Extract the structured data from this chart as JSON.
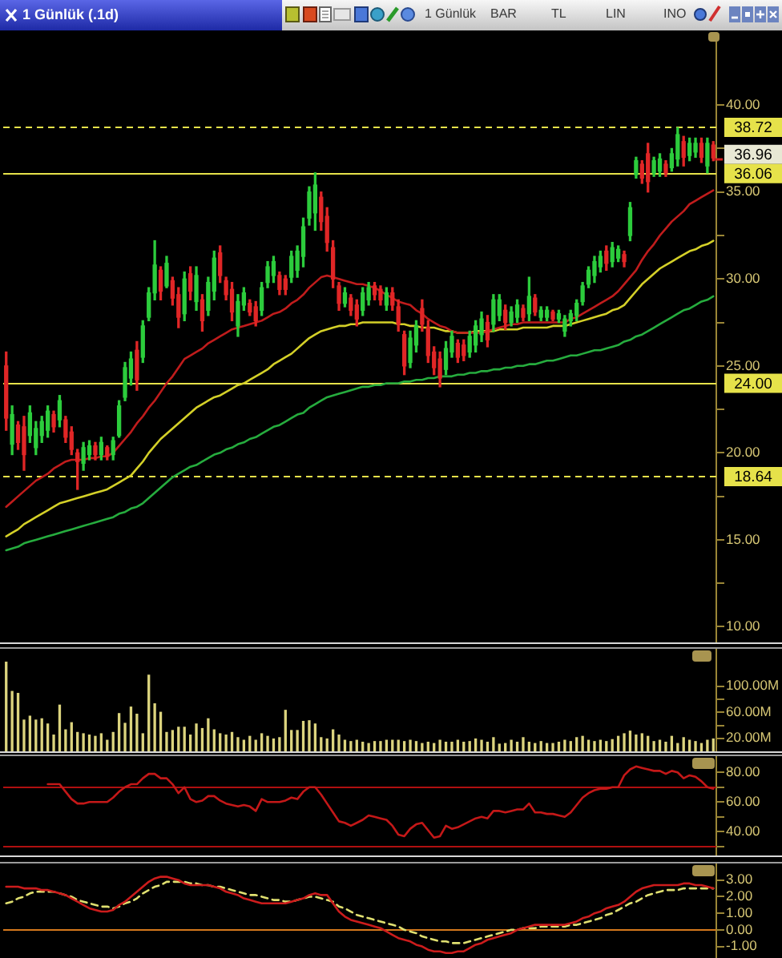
{
  "chart_data": [
    {
      "type": "candlestick",
      "title": "1 Günlük (.1d)",
      "categories": [
        null,
        null,
        null,
        null,
        null,
        null,
        null,
        null,
        null,
        null,
        null,
        null,
        null,
        null,
        null,
        null,
        null,
        null,
        null,
        null,
        null,
        null,
        null,
        null,
        null,
        null,
        null,
        null,
        null,
        null,
        null,
        null,
        null,
        null,
        null,
        null,
        null,
        null,
        null,
        null,
        null,
        null,
        null,
        null,
        null,
        null,
        null,
        null,
        null,
        null,
        null,
        null,
        null,
        null,
        null,
        null,
        null,
        null,
        null,
        null,
        null,
        null,
        null,
        null,
        null,
        null,
        null,
        null,
        null,
        null,
        null,
        null,
        null,
        null,
        null,
        null,
        null,
        null,
        null,
        null,
        null,
        null,
        null,
        null,
        null,
        null,
        null,
        null,
        null,
        null,
        null,
        null,
        null,
        null,
        null,
        null,
        null,
        null,
        null,
        null,
        null,
        null,
        null,
        null,
        null,
        null,
        null,
        null,
        null,
        null,
        null,
        null,
        null,
        null,
        null,
        null,
        null,
        null,
        null,
        null
      ],
      "ohlc": [
        [
          25.0,
          25.8,
          21.3,
          22.0
        ],
        [
          20.5,
          22.7,
          19.9,
          22.2
        ],
        [
          21.6,
          21.8,
          20.2,
          20.6
        ],
        [
          21.5,
          22.1,
          19.0,
          19.9
        ],
        [
          21.0,
          22.7,
          20.6,
          22.3
        ],
        [
          20.3,
          21.8,
          19.9,
          21.4
        ],
        [
          21.0,
          22.1,
          20.6,
          21.8
        ],
        [
          21.3,
          22.7,
          20.9,
          22.4
        ],
        [
          22.2,
          22.4,
          21.2,
          21.5
        ],
        [
          21.9,
          23.3,
          21.5,
          23.0
        ],
        [
          21.9,
          22.1,
          20.6,
          20.9
        ],
        [
          21.2,
          21.5,
          19.9,
          20.2
        ],
        [
          20.0,
          20.2,
          17.9,
          19.5
        ],
        [
          19.4,
          20.6,
          19.0,
          20.3
        ],
        [
          19.9,
          20.7,
          19.6,
          20.4
        ],
        [
          20.4,
          20.6,
          19.6,
          19.9
        ],
        [
          19.9,
          20.9,
          19.6,
          20.6
        ],
        [
          20.3,
          20.4,
          19.6,
          19.8
        ],
        [
          19.9,
          20.9,
          19.6,
          20.7
        ],
        [
          21.0,
          23.0,
          20.9,
          22.7
        ],
        [
          23.2,
          25.2,
          23.0,
          24.9
        ],
        [
          24.3,
          25.8,
          23.9,
          25.4
        ],
        [
          25.9,
          26.4,
          23.6,
          24.2
        ],
        [
          25.5,
          27.6,
          25.2,
          27.3
        ],
        [
          27.8,
          29.5,
          27.6,
          29.2
        ],
        [
          29.2,
          32.2,
          28.8,
          30.8
        ],
        [
          30.5,
          30.7,
          28.8,
          29.3
        ],
        [
          29.6,
          31.3,
          29.5,
          30.9
        ],
        [
          29.9,
          30.1,
          28.5,
          28.9
        ],
        [
          29.1,
          29.5,
          27.2,
          27.8
        ],
        [
          28.0,
          30.4,
          27.6,
          30.0
        ],
        [
          30.3,
          30.7,
          28.8,
          29.3
        ],
        [
          28.7,
          30.7,
          28.2,
          30.2
        ],
        [
          28.8,
          29.1,
          27.0,
          27.6
        ],
        [
          28.2,
          30.1,
          27.9,
          29.8
        ],
        [
          29.3,
          31.6,
          28.8,
          31.2
        ],
        [
          31.5,
          31.9,
          29.8,
          30.2
        ],
        [
          29.9,
          30.1,
          28.8,
          29.1
        ],
        [
          29.4,
          29.8,
          27.6,
          28.1
        ],
        [
          27.3,
          29.1,
          26.7,
          28.7
        ],
        [
          28.5,
          29.5,
          28.2,
          29.2
        ],
        [
          28.6,
          28.8,
          27.9,
          28.1
        ],
        [
          28.4,
          28.7,
          27.3,
          27.6
        ],
        [
          28.2,
          29.8,
          27.9,
          29.5
        ],
        [
          29.8,
          31.0,
          29.5,
          30.7
        ],
        [
          30.2,
          31.3,
          29.8,
          31.0
        ],
        [
          30.2,
          30.4,
          29.1,
          29.4
        ],
        [
          30.0,
          30.2,
          29.1,
          29.4
        ],
        [
          30.1,
          31.6,
          29.8,
          31.3
        ],
        [
          30.5,
          31.9,
          30.1,
          31.6
        ],
        [
          31.3,
          33.5,
          30.7,
          33.0
        ],
        [
          33.5,
          35.3,
          33.1,
          35.0
        ],
        [
          33.8,
          36.1,
          32.8,
          35.4
        ],
        [
          34.7,
          35.0,
          32.8,
          33.3
        ],
        [
          33.6,
          34.1,
          31.6,
          32.1
        ],
        [
          31.8,
          32.2,
          29.5,
          30.0
        ],
        [
          29.6,
          29.8,
          28.2,
          28.6
        ],
        [
          28.6,
          29.5,
          28.4,
          29.2
        ],
        [
          28.9,
          29.1,
          27.9,
          28.2
        ],
        [
          28.5,
          28.8,
          27.3,
          27.7
        ],
        [
          28.2,
          29.5,
          27.9,
          29.2
        ],
        [
          28.8,
          29.8,
          28.5,
          29.5
        ],
        [
          29.6,
          29.8,
          28.8,
          29.1
        ],
        [
          29.4,
          29.6,
          28.5,
          28.8
        ],
        [
          28.5,
          29.5,
          28.2,
          29.2
        ],
        [
          29.2,
          29.5,
          28.2,
          28.5
        ],
        [
          28.4,
          28.8,
          27.0,
          27.4
        ],
        [
          26.8,
          27.0,
          24.5,
          25.0
        ],
        [
          25.2,
          27.0,
          24.9,
          26.6
        ],
        [
          26.2,
          27.6,
          25.8,
          27.3
        ],
        [
          28.3,
          28.8,
          27.0,
          27.4
        ],
        [
          27.2,
          27.6,
          25.2,
          25.6
        ],
        [
          25.8,
          26.1,
          24.5,
          24.9
        ],
        [
          25.4,
          25.8,
          23.8,
          24.3
        ],
        [
          24.8,
          26.4,
          24.5,
          26.0
        ],
        [
          25.8,
          27.0,
          25.5,
          26.7
        ],
        [
          26.3,
          26.5,
          25.2,
          25.5
        ],
        [
          26.2,
          26.5,
          25.3,
          25.6
        ],
        [
          25.8,
          27.0,
          25.5,
          26.7
        ],
        [
          26.2,
          27.6,
          25.8,
          27.3
        ],
        [
          26.8,
          28.1,
          26.4,
          27.7
        ],
        [
          27.5,
          27.9,
          26.1,
          26.5
        ],
        [
          27.4,
          29.1,
          27.0,
          28.8
        ],
        [
          27.9,
          29.1,
          27.6,
          28.8
        ],
        [
          28.2,
          28.5,
          27.1,
          27.5
        ],
        [
          27.5,
          28.4,
          27.3,
          28.1
        ],
        [
          27.8,
          28.8,
          27.5,
          28.5
        ],
        [
          28.3,
          28.5,
          27.6,
          27.8
        ],
        [
          28.0,
          30.1,
          27.6,
          29.0
        ],
        [
          28.9,
          29.1,
          27.9,
          28.1
        ],
        [
          27.8,
          28.4,
          27.6,
          28.2
        ],
        [
          27.8,
          28.4,
          27.6,
          28.2
        ],
        [
          28.1,
          28.2,
          27.6,
          27.7
        ],
        [
          27.7,
          28.2,
          27.5,
          28.0
        ],
        [
          27.0,
          27.9,
          26.7,
          27.7
        ],
        [
          27.6,
          28.2,
          27.3,
          28.0
        ],
        [
          27.9,
          28.8,
          27.6,
          28.6
        ],
        [
          28.7,
          29.8,
          28.5,
          29.6
        ],
        [
          29.7,
          30.7,
          29.5,
          30.5
        ],
        [
          30.2,
          31.3,
          29.8,
          31.0
        ],
        [
          30.7,
          31.6,
          30.4,
          31.3
        ],
        [
          31.6,
          31.9,
          30.5,
          30.9
        ],
        [
          31.0,
          32.1,
          30.7,
          31.8
        ],
        [
          31.2,
          31.9,
          31.0,
          31.7
        ],
        [
          31.4,
          31.6,
          30.7,
          31.0
        ],
        [
          32.5,
          34.4,
          32.2,
          34.1
        ],
        [
          36.0,
          37.0,
          35.8,
          36.8
        ],
        [
          36.6,
          36.8,
          35.5,
          35.8
        ],
        [
          37.2,
          37.8,
          35.0,
          35.6
        ],
        [
          36.1,
          37.0,
          35.9,
          36.8
        ],
        [
          36.2,
          37.2,
          35.9,
          36.9
        ],
        [
          36.6,
          36.8,
          35.9,
          36.1
        ],
        [
          36.4,
          37.5,
          36.2,
          37.2
        ],
        [
          36.9,
          38.7,
          36.5,
          38.3
        ],
        [
          37.9,
          38.2,
          36.5,
          37.0
        ],
        [
          37.1,
          38.1,
          36.8,
          37.8
        ],
        [
          37.3,
          38.1,
          37.0,
          37.8
        ],
        [
          37.8,
          38.1,
          36.7,
          37.0
        ],
        [
          36.5,
          38.1,
          36.1,
          37.8
        ],
        [
          37.7,
          37.9,
          36.8,
          36.96
        ]
      ],
      "series": [
        {
          "type": "line",
          "color": "#c01c1c",
          "values": [
            16.9,
            17.2,
            17.5,
            17.8,
            18.1,
            18.4,
            18.6,
            18.8,
            19.1,
            19.3,
            19.5,
            19.6,
            19.6,
            19.6,
            19.7,
            19.7,
            19.8,
            19.8,
            20.0,
            20.4,
            20.8,
            21.2,
            21.7,
            22.1,
            22.6,
            23.0,
            23.5,
            24.0,
            24.4,
            24.9,
            25.4,
            25.6,
            25.8,
            26.0,
            26.3,
            26.5,
            26.7,
            26.9,
            27.1,
            27.2,
            27.3,
            27.4,
            27.5,
            27.6,
            27.8,
            28.0,
            28.1,
            28.3,
            28.6,
            28.8,
            29.1,
            29.5,
            29.8,
            30.1,
            30.2,
            30.1,
            30.0,
            29.9,
            29.8,
            29.7,
            29.7,
            29.6,
            29.5,
            29.3,
            29.1,
            28.9,
            28.7,
            28.6,
            28.5,
            28.2,
            28.0,
            27.7,
            27.5,
            27.3,
            27.2,
            27.0,
            26.9,
            26.9,
            26.9,
            26.9,
            26.9,
            27.0,
            27.1,
            27.2,
            27.3,
            27.4,
            27.4,
            27.5,
            27.5,
            27.5,
            27.5,
            27.5,
            27.5,
            27.5,
            27.5,
            27.7,
            27.8,
            28.0,
            28.2,
            28.4,
            28.6,
            28.8,
            29.0,
            29.3,
            29.7,
            30.1,
            30.5,
            31.1,
            31.6,
            32.0,
            32.5,
            32.9,
            33.3,
            33.6,
            33.9,
            34.3,
            34.5,
            34.7,
            34.9,
            35.1
          ]
        },
        {
          "type": "line",
          "color": "#d4d028",
          "values": [
            15.2,
            15.4,
            15.6,
            15.9,
            16.1,
            16.3,
            16.5,
            16.7,
            16.9,
            17.1,
            17.2,
            17.3,
            17.4,
            17.5,
            17.6,
            17.7,
            17.8,
            17.9,
            18.1,
            18.3,
            18.5,
            18.7,
            19.1,
            19.5,
            20.0,
            20.4,
            20.8,
            21.1,
            21.4,
            21.7,
            22.0,
            22.3,
            22.6,
            22.8,
            23.0,
            23.2,
            23.3,
            23.5,
            23.7,
            23.9,
            24.0,
            24.2,
            24.4,
            24.6,
            24.8,
            25.1,
            25.3,
            25.5,
            25.7,
            26.0,
            26.3,
            26.6,
            26.8,
            27.0,
            27.1,
            27.2,
            27.3,
            27.3,
            27.4,
            27.4,
            27.5,
            27.5,
            27.5,
            27.5,
            27.5,
            27.5,
            27.4,
            27.4,
            27.3,
            27.3,
            27.2,
            27.2,
            27.2,
            27.1,
            27.0,
            27.0,
            26.9,
            26.9,
            26.9,
            27.0,
            27.0,
            27.0,
            27.0,
            27.1,
            27.1,
            27.1,
            27.1,
            27.2,
            27.2,
            27.2,
            27.2,
            27.2,
            27.3,
            27.3,
            27.3,
            27.4,
            27.5,
            27.6,
            27.7,
            27.8,
            27.9,
            28.0,
            28.2,
            28.3,
            28.5,
            28.9,
            29.3,
            29.7,
            30.0,
            30.3,
            30.6,
            30.8,
            31.0,
            31.2,
            31.4,
            31.6,
            31.7,
            31.9,
            32.0,
            32.2
          ]
        },
        {
          "type": "line",
          "color": "#26ac3e",
          "values": [
            14.4,
            14.5,
            14.6,
            14.8,
            14.9,
            15.0,
            15.1,
            15.2,
            15.3,
            15.4,
            15.5,
            15.6,
            15.7,
            15.8,
            15.9,
            16.0,
            16.1,
            16.2,
            16.3,
            16.5,
            16.6,
            16.8,
            16.9,
            17.1,
            17.4,
            17.7,
            18.0,
            18.3,
            18.6,
            18.8,
            19.0,
            19.2,
            19.3,
            19.5,
            19.7,
            19.9,
            20.0,
            20.2,
            20.3,
            20.5,
            20.6,
            20.8,
            20.9,
            21.1,
            21.3,
            21.5,
            21.6,
            21.8,
            22.0,
            22.2,
            22.3,
            22.6,
            22.8,
            23.0,
            23.2,
            23.3,
            23.4,
            23.5,
            23.6,
            23.7,
            23.8,
            23.8,
            23.9,
            23.9,
            24.0,
            24.0,
            24.0,
            24.1,
            24.1,
            24.2,
            24.2,
            24.3,
            24.3,
            24.4,
            24.4,
            24.4,
            24.5,
            24.5,
            24.6,
            24.6,
            24.7,
            24.7,
            24.8,
            24.8,
            24.9,
            24.9,
            25.0,
            25.0,
            25.1,
            25.1,
            25.2,
            25.3,
            25.3,
            25.4,
            25.5,
            25.6,
            25.6,
            25.7,
            25.8,
            25.9,
            25.9,
            26.0,
            26.1,
            26.2,
            26.4,
            26.5,
            26.7,
            26.8,
            27.0,
            27.2,
            27.4,
            27.6,
            27.8,
            28.0,
            28.2,
            28.3,
            28.5,
            28.7,
            28.8,
            29.0
          ]
        }
      ],
      "ylim": [
        9.1,
        44.2
      ],
      "yticks": [
        {
          "value": 10,
          "label": "10.00"
        },
        {
          "value": 12.5,
          "label": null
        },
        {
          "value": 15,
          "label": "15.00"
        },
        {
          "value": 17.5,
          "label": null
        },
        {
          "value": 20,
          "label": "20.00"
        },
        {
          "value": 22.5,
          "label": null
        },
        {
          "value": 25,
          "label": "25.00"
        },
        {
          "value": 27.5,
          "label": null
        },
        {
          "value": 30,
          "label": "30.00"
        },
        {
          "value": 32.5,
          "label": null
        },
        {
          "value": 35,
          "label": "35.00"
        },
        {
          "value": 37.5,
          "label": null
        },
        {
          "value": 40,
          "label": "40.00"
        }
      ],
      "tick_labels": "y",
      "ref_lines": [
        {
          "axis": "y",
          "value": 38.72,
          "label": "38.72",
          "color": "#e6e24a",
          "line_style": "dashed"
        },
        {
          "axis": "y",
          "value": 36.06,
          "label": "36.06",
          "color": "#e6e24a"
        },
        {
          "axis": "y",
          "value": 24.0,
          "label": "24.00",
          "color": "#e6e24a"
        },
        {
          "axis": "y",
          "value": 18.64,
          "label": "18.64",
          "color": "#e6e24a",
          "line_style": "dashed"
        }
      ],
      "annotations": [
        "1 Günlük",
        "BAR",
        "TL",
        "LIN",
        "INO",
        "36.96"
      ]
    },
    {
      "type": "bar",
      "categories": [
        null,
        null,
        null,
        null,
        null,
        null,
        null,
        null,
        null,
        null,
        null,
        null,
        null,
        null,
        null,
        null,
        null,
        null,
        null,
        null,
        null,
        null,
        null,
        null,
        null,
        null,
        null,
        null,
        null,
        null,
        null,
        null,
        null,
        null,
        null,
        null,
        null,
        null,
        null,
        null,
        null,
        null,
        null,
        null,
        null,
        null,
        null,
        null,
        null,
        null,
        null,
        null,
        null,
        null,
        null,
        null,
        null,
        null,
        null,
        null,
        null,
        null,
        null,
        null,
        null,
        null,
        null,
        null,
        null,
        null,
        null,
        null,
        null,
        null,
        null,
        null,
        null,
        null,
        null,
        null,
        null,
        null,
        null,
        null,
        null,
        null,
        null,
        null,
        null,
        null,
        null,
        null,
        null,
        null,
        null,
        null,
        null,
        null,
        null,
        null,
        null,
        null,
        null,
        null,
        null,
        null,
        null,
        null,
        null,
        null,
        null,
        null,
        null,
        null,
        null,
        null,
        null,
        null,
        null,
        null
      ],
      "values": [
        137,
        92,
        89,
        48,
        54,
        48,
        50,
        42,
        25,
        71,
        33,
        44,
        29,
        27,
        25,
        23,
        27,
        17,
        29,
        58,
        43,
        68,
        57,
        27,
        117,
        73,
        60,
        29,
        32,
        37,
        37,
        25,
        42,
        35,
        50,
        33,
        27,
        25,
        29,
        21,
        17,
        23,
        17,
        27,
        23,
        19,
        21,
        63,
        32,
        32,
        46,
        47,
        42,
        21,
        19,
        33,
        25,
        17,
        15,
        17,
        14,
        12,
        15,
        15,
        17,
        17,
        17,
        15,
        17,
        15,
        12,
        14,
        12,
        17,
        14,
        14,
        17,
        14,
        15,
        19,
        17,
        14,
        21,
        11,
        12,
        17,
        14,
        21,
        14,
        12,
        15,
        12,
        12,
        14,
        17,
        15,
        21,
        23,
        17,
        15,
        17,
        15,
        18,
        23,
        27,
        31,
        25,
        27,
        23,
        15,
        17,
        14,
        23,
        12,
        21,
        17,
        15,
        12,
        17,
        19
      ],
      "color": "#dcd47e",
      "ylim": [
        0,
        160
      ],
      "yticks": [
        {
          "value": 100,
          "label": "100.00M"
        },
        {
          "value": 80,
          "label": null
        },
        {
          "value": 60,
          "label": "60.00M"
        },
        {
          "value": 40,
          "label": null
        },
        {
          "value": 20,
          "label": "20.00M"
        }
      ],
      "tick_labels": "y"
    },
    {
      "type": "line",
      "categories": [
        null,
        null,
        null,
        null,
        null,
        null,
        null,
        null,
        null,
        null,
        null,
        null,
        null,
        null,
        null,
        null,
        null,
        null,
        null,
        null,
        null,
        null,
        null,
        null,
        null,
        null,
        null,
        null,
        null,
        null,
        null,
        null,
        null,
        null,
        null,
        null,
        null,
        null,
        null,
        null,
        null,
        null,
        null,
        null,
        null,
        null,
        null,
        null,
        null,
        null,
        null,
        null,
        null,
        null,
        null,
        null,
        null,
        null,
        null,
        null,
        null,
        null,
        null,
        null,
        null,
        null,
        null,
        null,
        null,
        null,
        null,
        null,
        null,
        null,
        null,
        null,
        null,
        null,
        null,
        null,
        null,
        null,
        null,
        null,
        null,
        null,
        null,
        null,
        null,
        null,
        null,
        null,
        null,
        null,
        null,
        null,
        null,
        null,
        null,
        null,
        null,
        null,
        null,
        null,
        null,
        null,
        null,
        null,
        null,
        null,
        null,
        null,
        null,
        null,
        null,
        null,
        null,
        null,
        null,
        null
      ],
      "values": [
        null,
        null,
        null,
        null,
        null,
        null,
        null,
        72,
        72,
        72,
        67,
        62,
        59,
        59,
        60,
        60,
        60,
        60,
        63,
        67,
        70,
        72,
        72,
        76,
        79,
        79,
        76,
        76,
        72,
        66,
        70,
        62,
        60,
        61,
        64,
        64,
        61,
        59,
        58,
        57,
        58,
        57,
        54,
        62,
        60,
        60,
        60,
        61,
        63,
        62,
        67,
        70,
        70,
        65,
        59,
        53,
        47,
        46,
        44,
        46,
        48,
        51,
        50,
        49,
        48,
        44,
        38,
        37,
        42,
        45,
        46,
        41,
        36,
        37,
        44,
        42,
        43,
        45,
        47,
        49,
        50,
        49,
        54,
        54,
        53,
        54,
        55,
        55,
        59,
        53,
        53,
        52,
        52,
        51,
        50,
        53,
        58,
        63,
        66,
        68,
        69,
        69,
        70,
        70,
        78,
        82,
        84,
        83,
        82,
        81,
        81,
        79,
        81,
        80,
        76,
        78,
        77,
        74,
        70,
        69
      ],
      "color": "#c41818",
      "ylim": [
        24,
        92
      ],
      "yticks": [
        {
          "value": 30,
          "label": null
        },
        {
          "value": 40,
          "label": "40.00"
        },
        {
          "value": 50,
          "label": null
        },
        {
          "value": 60,
          "label": "60.00"
        },
        {
          "value": 70,
          "label": null
        },
        {
          "value": 80,
          "label": "80.00"
        }
      ],
      "tick_labels": "y",
      "ref_lines": [
        {
          "axis": "y",
          "value": 70,
          "color": "#b01010"
        },
        {
          "axis": "y",
          "value": 30,
          "color": "#b01010"
        }
      ]
    },
    {
      "type": "line",
      "categories": [
        null,
        null,
        null,
        null,
        null,
        null,
        null,
        null,
        null,
        null,
        null,
        null,
        null,
        null,
        null,
        null,
        null,
        null,
        null,
        null,
        null,
        null,
        null,
        null,
        null,
        null,
        null,
        null,
        null,
        null,
        null,
        null,
        null,
        null,
        null,
        null,
        null,
        null,
        null,
        null,
        null,
        null,
        null,
        null,
        null,
        null,
        null,
        null,
        null,
        null,
        null,
        null,
        null,
        null,
        null,
        null,
        null,
        null,
        null,
        null,
        null,
        null,
        null,
        null,
        null,
        null,
        null,
        null,
        null,
        null,
        null,
        null,
        null,
        null,
        null,
        null,
        null,
        null,
        null,
        null,
        null,
        null,
        null,
        null,
        null,
        null,
        null,
        null,
        null,
        null,
        null,
        null,
        null,
        null,
        null,
        null,
        null,
        null,
        null,
        null,
        null,
        null,
        null,
        null,
        null,
        null,
        null,
        null,
        null,
        null,
        null,
        null,
        null,
        null,
        null,
        null,
        null,
        null,
        null,
        null
      ],
      "series": [
        {
          "color": "#cc1c1c",
          "values": [
            2.6,
            2.6,
            2.6,
            2.5,
            2.5,
            2.5,
            2.4,
            2.4,
            2.3,
            2.2,
            2.1,
            1.9,
            1.7,
            1.5,
            1.3,
            1.2,
            1.1,
            1.1,
            1.2,
            1.5,
            1.7,
            2.0,
            2.3,
            2.6,
            2.9,
            3.1,
            3.2,
            3.2,
            3.1,
            3.0,
            2.8,
            2.7,
            2.7,
            2.7,
            2.7,
            2.6,
            2.5,
            2.3,
            2.2,
            2.1,
            1.9,
            1.8,
            1.7,
            1.6,
            1.6,
            1.6,
            1.6,
            1.6,
            1.7,
            1.8,
            1.9,
            2.1,
            2.2,
            2.1,
            2.1,
            1.6,
            1.1,
            0.8,
            0.6,
            0.5,
            0.4,
            0.3,
            0.2,
            0.1,
            -0.1,
            -0.3,
            -0.5,
            -0.6,
            -0.7,
            -0.9,
            -1.0,
            -1.2,
            -1.3,
            -1.3,
            -1.4,
            -1.4,
            -1.3,
            -1.3,
            -1.1,
            -0.9,
            -0.8,
            -0.6,
            -0.5,
            -0.4,
            -0.3,
            -0.2,
            0.0,
            0.1,
            0.2,
            0.3,
            0.3,
            0.3,
            0.3,
            0.3,
            0.3,
            0.4,
            0.5,
            0.7,
            0.8,
            1.0,
            1.1,
            1.3,
            1.4,
            1.5,
            1.7,
            2.0,
            2.3,
            2.5,
            2.6,
            2.7,
            2.7,
            2.7,
            2.7,
            2.7,
            2.8,
            2.8,
            2.7,
            2.7,
            2.6,
            2.5
          ]
        },
        {
          "color": "#e0e070",
          "line_style": "dashed",
          "values": [
            1.6,
            1.7,
            1.9,
            2.0,
            2.2,
            2.3,
            2.3,
            2.3,
            2.3,
            2.2,
            2.1,
            2.0,
            1.8,
            1.7,
            1.6,
            1.5,
            1.4,
            1.4,
            1.3,
            1.4,
            1.6,
            1.7,
            1.9,
            2.2,
            2.4,
            2.6,
            2.7,
            2.9,
            2.9,
            2.9,
            2.9,
            2.8,
            2.8,
            2.7,
            2.7,
            2.6,
            2.6,
            2.5,
            2.4,
            2.3,
            2.2,
            2.1,
            2.1,
            2.0,
            1.9,
            1.8,
            1.8,
            1.7,
            1.7,
            1.8,
            1.9,
            2.0,
            2.0,
            1.9,
            1.8,
            1.7,
            1.4,
            1.3,
            1.1,
            0.9,
            0.8,
            0.7,
            0.6,
            0.5,
            0.4,
            0.3,
            0.2,
            0.0,
            -0.1,
            -0.2,
            -0.4,
            -0.5,
            -0.6,
            -0.7,
            -0.7,
            -0.8,
            -0.8,
            -0.8,
            -0.7,
            -0.6,
            -0.5,
            -0.4,
            -0.3,
            -0.2,
            -0.1,
            0.0,
            0.0,
            0.1,
            0.1,
            0.1,
            0.2,
            0.2,
            0.2,
            0.2,
            0.2,
            0.3,
            0.3,
            0.4,
            0.5,
            0.6,
            0.7,
            0.9,
            1.0,
            1.2,
            1.4,
            1.6,
            1.7,
            1.9,
            2.1,
            2.2,
            2.3,
            2.4,
            2.4,
            2.4,
            2.5,
            2.5,
            2.5,
            2.5,
            2.5,
            2.5
          ]
        }
      ],
      "ylim": [
        -1.7,
        4.1
      ],
      "yticks": [
        {
          "value": -1,
          "label": "-1.00"
        },
        {
          "value": 0,
          "label": "0.00"
        },
        {
          "value": 1,
          "label": "1.00"
        },
        {
          "value": 2,
          "label": "2.00"
        },
        {
          "value": 3,
          "label": "3.00"
        }
      ],
      "tick_labels": "y",
      "ref_lines": [
        {
          "axis": "y",
          "value": 0,
          "color": "#d4781c"
        }
      ]
    }
  ]
}
